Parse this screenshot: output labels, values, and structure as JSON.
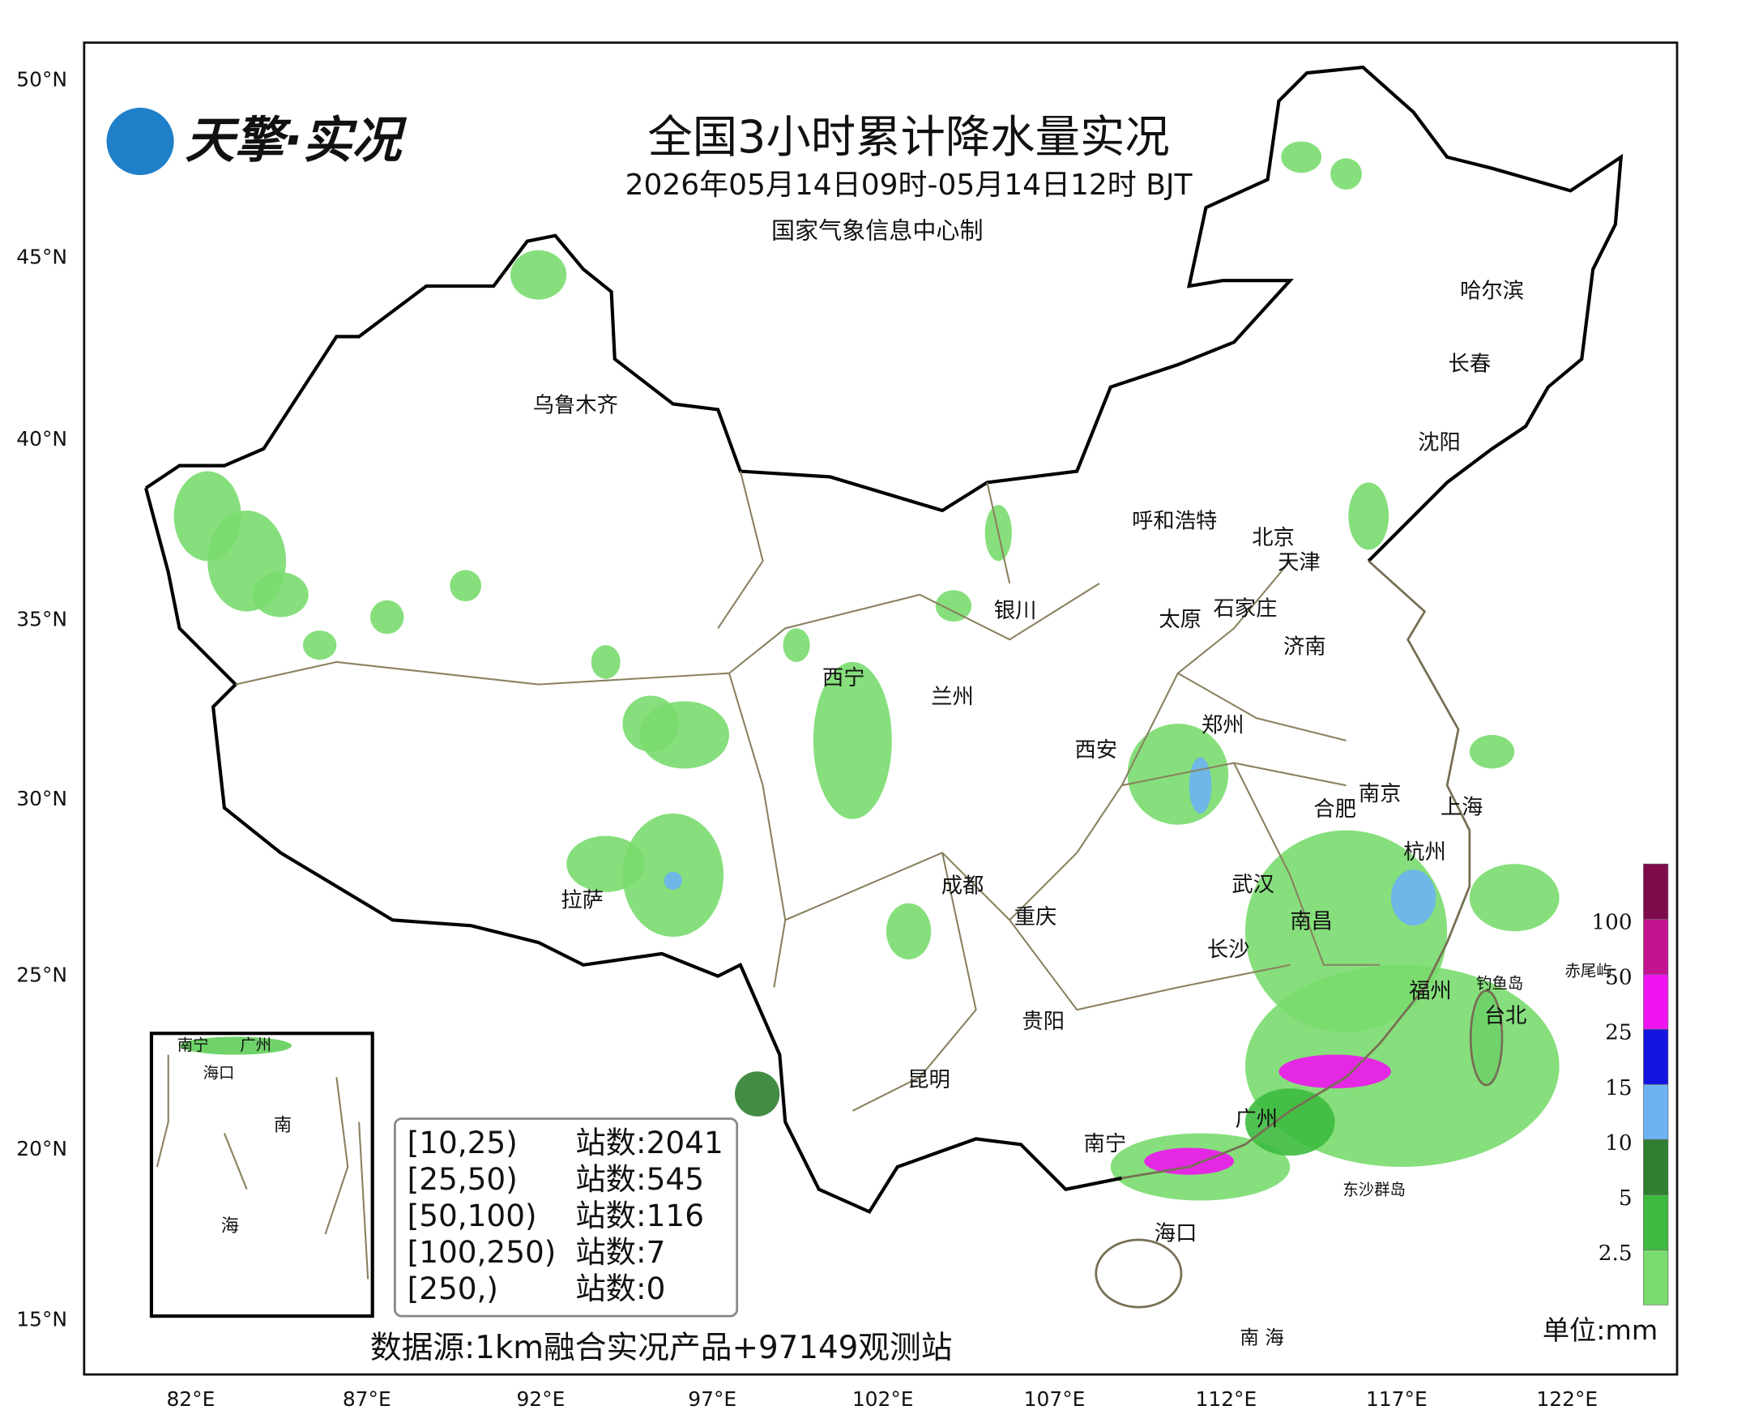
{
  "header": {
    "logo": "天擎·实况",
    "title": "全国3小时累计降水量实况",
    "subtitle": "2026年05月14日09时-05月14日12时 BJT",
    "producer": "国家气象信息中心制"
  },
  "axes": {
    "lat_labels": [
      "50°N",
      "45°N",
      "40°N",
      "35°N",
      "30°N",
      "25°N",
      "20°N",
      "15°N"
    ],
    "lon_labels": [
      "82°E",
      "87°E",
      "92°E",
      "97°E",
      "102°E",
      "107°E",
      "112°E",
      "117°E",
      "122°E"
    ]
  },
  "map": {
    "cities": [
      "乌鲁木齐",
      "哈尔滨",
      "长春",
      "沈阳",
      "呼和浩特",
      "北京",
      "天津",
      "石家庄",
      "太原",
      "济南",
      "银川",
      "西宁",
      "兰州",
      "郑州",
      "西安",
      "南京",
      "合肥",
      "上海",
      "杭州",
      "武汉",
      "成都",
      "拉萨",
      "重庆",
      "南昌",
      "长沙",
      "福州",
      "台北",
      "贵阳",
      "昆明",
      "广州",
      "南宁",
      "海口"
    ],
    "labels": [
      "钓鱼岛",
      "赤尾屿",
      "东沙群岛",
      "南 海"
    ]
  },
  "inset": {
    "labels": [
      "南宁",
      "广州",
      "海口",
      "南",
      "海"
    ]
  },
  "stats": {
    "rows": [
      [
        "[10,25)",
        "站数:2041"
      ],
      [
        "[25,50)",
        "站数:545"
      ],
      [
        "[50,100)",
        "站数:116"
      ],
      [
        "[100,250)",
        "站数:7"
      ],
      [
        "[250,)",
        "站数:0"
      ]
    ]
  },
  "source": "数据源:1km融合实况产品+97149观测站",
  "legend": {
    "levels": [
      "2.5",
      "5",
      "10",
      "15",
      "25",
      "50",
      "100"
    ],
    "colors": [
      "#79dc6e",
      "#3dbb3f",
      "#2f7f30",
      "#6cb3f2",
      "#1414e0",
      "#f014f0",
      "#c2128f",
      "#7e0a4c"
    ],
    "unit": "单位:mm"
  }
}
